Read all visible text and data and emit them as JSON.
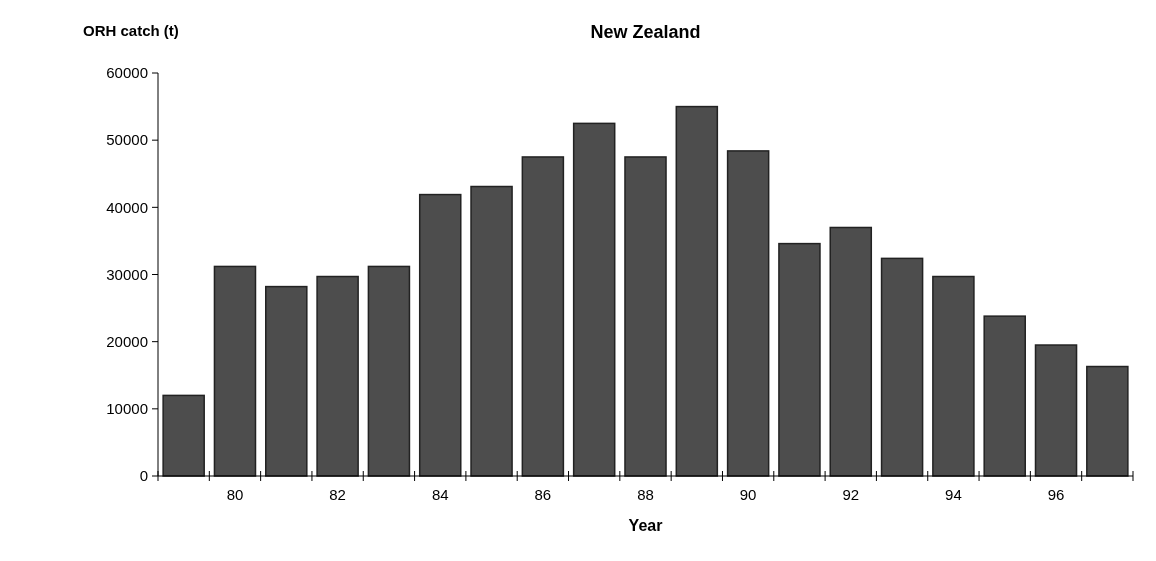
{
  "chart_data": {
    "type": "bar",
    "title": "New Zealand",
    "xlabel": "Year",
    "ylabel": "ORH catch (t)",
    "categories": [
      null,
      "80",
      null,
      "82",
      null,
      "84",
      null,
      "86",
      null,
      "88",
      null,
      "90",
      null,
      "92",
      null,
      "94",
      null,
      "96",
      null
    ],
    "values": [
      12000,
      31200,
      28200,
      29700,
      31200,
      41900,
      43100,
      47500,
      52500,
      47500,
      55000,
      48400,
      34600,
      37000,
      32400,
      29700,
      23800,
      19500,
      16300
    ],
    "color": "#4d4d4d",
    "ylim": [
      0,
      60000
    ],
    "yticks": [
      0,
      10000,
      20000,
      30000,
      40000,
      50000,
      60000
    ],
    "grid": false
  }
}
